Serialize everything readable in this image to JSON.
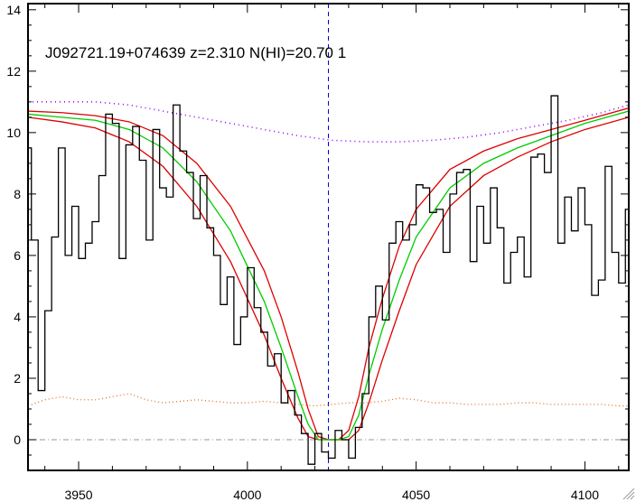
{
  "chart_data": {
    "type": "line",
    "title": "J092721.19+074639 z=2.310 N(HI)=20.70 1",
    "xlabel": "",
    "ylabel": "",
    "xlim": [
      3935,
      4113
    ],
    "ylim": [
      -1,
      14.2
    ],
    "x_ticks": [
      3950,
      4000,
      4050,
      4100
    ],
    "y_ticks": [
      0,
      2,
      4,
      6,
      8,
      10,
      12,
      14
    ],
    "grid": false,
    "legend": "none",
    "vline_x": 4024,
    "hline_y": 0,
    "colors": {
      "flux": "#000000",
      "model": "#00cc00",
      "model_bounds": "#dd0000",
      "continuum": "#9900ff",
      "error": "#e07020",
      "vline": "#0000cc",
      "hline": "#999999"
    },
    "series": [
      {
        "style": "step",
        "x": [
          3935,
          3937,
          3939,
          3941,
          3943,
          3945,
          3947,
          3949,
          3951,
          3953,
          3955,
          3957,
          3959,
          3961,
          3963,
          3965,
          3967,
          3969,
          3971,
          3973,
          3975,
          3977,
          3979,
          3981,
          3983,
          3985,
          3987,
          3989,
          3991,
          3993,
          3995,
          3997,
          3999,
          4001,
          4003,
          4005,
          4007,
          4009,
          4011,
          4013,
          4015,
          4017,
          4019,
          4021,
          4023,
          4025,
          4027,
          4029,
          4031,
          4033,
          4035,
          4037,
          4039,
          4041,
          4043,
          4045,
          4047,
          4049,
          4051,
          4053,
          4055,
          4057,
          4059,
          4061,
          4063,
          4065,
          4067,
          4069,
          4071,
          4073,
          4075,
          4077,
          4079,
          4081,
          4083,
          4085,
          4087,
          4089,
          4091,
          4093,
          4095,
          4097,
          4099,
          4101,
          4103,
          4105,
          4107,
          4109,
          4111,
          4113
        ],
        "values": [
          9.5,
          6.5,
          1.6,
          4.2,
          6.6,
          9.5,
          6.0,
          7.6,
          5.9,
          6.4,
          7.1,
          8.6,
          10.6,
          10.3,
          5.9,
          9.6,
          10.2,
          9.1,
          6.5,
          10.1,
          8.2,
          7.9,
          10.9,
          9.4,
          8.7,
          7.2,
          8.6,
          6.9,
          6.0,
          4.4,
          5.3,
          3.1,
          4.0,
          5.6,
          4.3,
          3.5,
          2.4,
          2.8,
          1.2,
          1.6,
          0.8,
          0.2,
          -0.8,
          0.2,
          -0.4,
          -0.6,
          0.3,
          0.0,
          -0.6,
          0.4,
          1.5,
          4.0,
          5.0,
          3.9,
          6.4,
          7.1,
          6.5,
          7.0,
          8.3,
          8.2,
          7.4,
          7.5,
          6.1,
          8.0,
          8.7,
          8.8,
          5.8,
          7.6,
          6.4,
          8.2,
          6.9,
          5.1,
          6.1,
          6.6,
          5.3,
          9.2,
          9.3,
          8.7,
          11.2,
          6.4,
          7.9,
          6.8,
          8.2,
          7.0,
          4.7,
          5.2,
          8.9,
          6.1,
          5.1,
          7.5
        ]
      },
      {
        "style": "line",
        "x": [
          3935,
          3945,
          3955,
          3965,
          3975,
          3985,
          3995,
          4005,
          4010,
          4015,
          4018,
          4021,
          4024,
          4027,
          4030,
          4033,
          4036,
          4040,
          4045,
          4050,
          4060,
          4070,
          4080,
          4090,
          4100,
          4113
        ],
        "values": [
          10.6,
          10.5,
          10.4,
          10.1,
          9.5,
          8.4,
          6.8,
          4.5,
          3.0,
          1.4,
          0.5,
          0.0,
          0.0,
          0.0,
          0.1,
          0.8,
          2.1,
          3.6,
          5.2,
          6.6,
          8.2,
          9.0,
          9.5,
          9.9,
          10.3,
          10.7
        ]
      },
      {
        "style": "line",
        "x": [
          3935,
          3945,
          3955,
          3965,
          3975,
          3985,
          3995,
          4005,
          4010,
          4015,
          4018,
          4021,
          4024,
          4027,
          4030,
          4033,
          4036,
          4040,
          4045,
          4050,
          4060,
          4070,
          4080,
          4090,
          4100,
          4113
        ],
        "values": [
          10.7,
          10.65,
          10.55,
          10.35,
          9.9,
          9.0,
          7.6,
          5.5,
          4.0,
          2.2,
          1.0,
          0.1,
          0.0,
          0.0,
          0.3,
          1.4,
          3.0,
          4.6,
          6.3,
          7.5,
          8.8,
          9.4,
          9.8,
          10.1,
          10.4,
          10.8
        ]
      },
      {
        "style": "line",
        "x": [
          3935,
          3945,
          3955,
          3965,
          3975,
          3985,
          3995,
          4005,
          4010,
          4015,
          4018,
          4021,
          4024,
          4027,
          4030,
          4033,
          4036,
          4040,
          4045,
          4050,
          4060,
          4070,
          4080,
          4090,
          4100,
          4113
        ],
        "values": [
          10.5,
          10.35,
          10.15,
          9.7,
          8.9,
          7.6,
          5.8,
          3.4,
          2.0,
          0.7,
          0.1,
          0.0,
          0.0,
          0.0,
          0.0,
          0.3,
          1.2,
          2.6,
          4.2,
          5.7,
          7.6,
          8.6,
          9.2,
          9.7,
          10.1,
          10.5
        ]
      },
      {
        "style": "dotted",
        "x": [
          3935,
          3945,
          3955,
          3965,
          3975,
          3985,
          3995,
          4005,
          4015,
          4025,
          4035,
          4045,
          4055,
          4065,
          4075,
          4085,
          4095,
          4105,
          4113
        ],
        "values": [
          11.0,
          11.0,
          11.0,
          10.9,
          10.7,
          10.5,
          10.3,
          10.1,
          9.9,
          9.75,
          9.7,
          9.7,
          9.75,
          9.85,
          10.0,
          10.2,
          10.4,
          10.65,
          10.9
        ]
      },
      {
        "style": "dotted",
        "x": [
          3935,
          3940,
          3945,
          3950,
          3955,
          3960,
          3965,
          3970,
          3975,
          3980,
          3985,
          3990,
          3995,
          4000,
          4005,
          4010,
          4015,
          4020,
          4025,
          4030,
          4035,
          4040,
          4045,
          4050,
          4055,
          4060,
          4065,
          4070,
          4075,
          4080,
          4085,
          4090,
          4095,
          4100,
          4105,
          4110,
          4113
        ],
        "values": [
          1.1,
          1.3,
          1.4,
          1.3,
          1.3,
          1.4,
          1.5,
          1.3,
          1.2,
          1.25,
          1.3,
          1.25,
          1.2,
          1.2,
          1.25,
          1.2,
          1.15,
          1.1,
          1.15,
          1.2,
          1.2,
          1.25,
          1.35,
          1.3,
          1.2,
          1.2,
          1.15,
          1.15,
          1.15,
          1.2,
          1.2,
          1.15,
          1.15,
          1.15,
          1.15,
          1.1,
          1.1
        ]
      }
    ]
  }
}
